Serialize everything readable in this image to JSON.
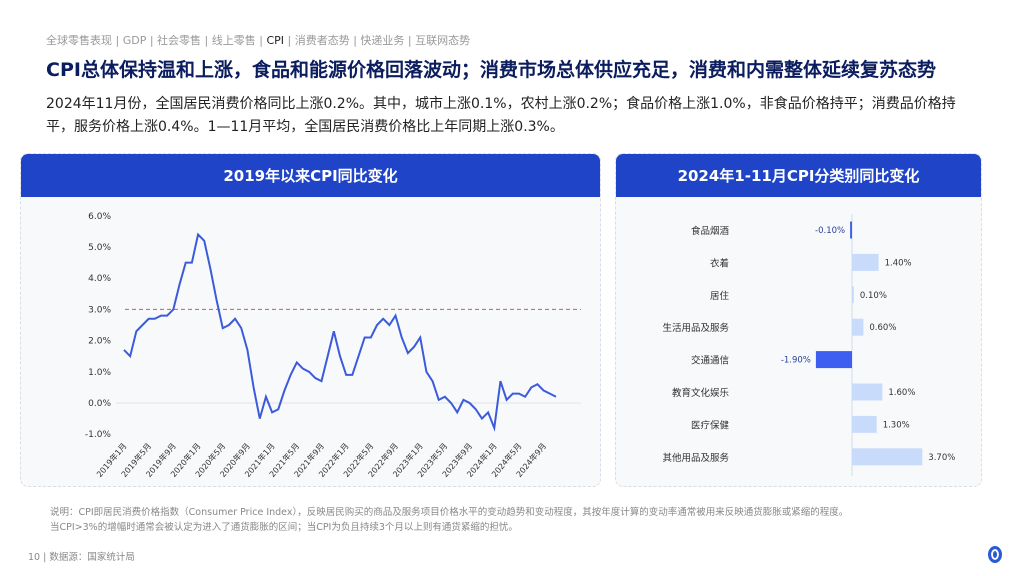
{
  "nav": {
    "items": [
      "全球零售表现",
      "GDP",
      "社会零售",
      "线上零售",
      "CPI",
      "消费者态势",
      "快递业务",
      "互联网态势"
    ],
    "active": "CPI"
  },
  "title": "CPI总体保持温和上涨，食品和能源价格回落波动；消费市场总体供应充足，消费和内需整体延续复苏态势",
  "summary": "2024年11月份，全国居民消费价格同比上涨0.2%。其中，城市上涨0.1%，农村上涨0.2%；食品价格上涨1.0%，非食品价格持平；消费品价格持平，服务价格上涨0.4%。1—11月平均，全国居民消费价格比上年同期上涨0.3%。",
  "note": [
    "说明：CPI即居民消费价格指数（Consumer Price Index），反映居民购买的商品及服务项目价格水平的变动趋势和变动程度，其按年度计算的变动率通常被用来反映通货膨胀或紧缩的程度。",
    "当CPI>3%的增幅时通常会被认定为进入了通货膨胀的区间；当CPI为负且持续3个月以上则有通货紧缩的担忧。"
  ],
  "footer": {
    "page": "10",
    "source": "数据源：国家统计局"
  },
  "colors": {
    "header": "#1f44c7",
    "line": "#3b5bdb",
    "threshold": "#e05252",
    "bar_pos": "#c9dbfb",
    "bar_neg": "#3d5ef0"
  },
  "chart_data": [
    {
      "type": "line",
      "title": "2019年以来CPI同比变化",
      "ylim": [
        -1,
        6
      ],
      "yticks": [
        "6.0%",
        "5.0%",
        "4.0%",
        "3.0%",
        "2.0%",
        "1.0%",
        "0.0%",
        "-1.0%"
      ],
      "ytick_values": [
        6,
        5,
        4,
        3,
        2,
        1,
        0,
        -1
      ],
      "xticks": [
        "2019年1月",
        "2019年5月",
        "2019年9月",
        "2020年1月",
        "2020年5月",
        "2020年9月",
        "2021年1月",
        "2021年5月",
        "2021年9月",
        "2022年1月",
        "2022年5月",
        "2022年9月",
        "2023年1月",
        "2023年5月",
        "2023年9月",
        "2024年1月",
        "2024年5月",
        "2024年9月"
      ],
      "threshold": 3.0,
      "values": [
        1.7,
        1.5,
        2.3,
        2.5,
        2.7,
        2.7,
        2.8,
        2.8,
        3.0,
        3.8,
        4.5,
        4.5,
        5.4,
        5.2,
        4.3,
        3.3,
        2.4,
        2.5,
        2.7,
        2.4,
        1.7,
        0.5,
        -0.5,
        0.2,
        -0.3,
        -0.2,
        0.4,
        0.9,
        1.3,
        1.1,
        1.0,
        0.8,
        0.7,
        1.5,
        2.3,
        1.5,
        0.9,
        0.9,
        1.5,
        2.1,
        2.1,
        2.5,
        2.7,
        2.5,
        2.8,
        2.1,
        1.6,
        1.8,
        2.1,
        1.0,
        0.7,
        0.1,
        0.2,
        0.0,
        -0.3,
        0.1,
        0.0,
        -0.2,
        -0.5,
        -0.3,
        -0.8,
        0.7,
        0.1,
        0.3,
        0.3,
        0.2,
        0.5,
        0.6,
        0.4,
        0.3,
        0.2
      ]
    },
    {
      "type": "bar",
      "orientation": "horizontal",
      "title": "2024年1-11月CPI分类别同比变化",
      "categories": [
        "食品烟酒",
        "衣着",
        "居住",
        "生活用品及服务",
        "交通通信",
        "教育文化娱乐",
        "医疗保健",
        "其他用品及服务"
      ],
      "values": [
        -0.1,
        1.4,
        0.1,
        0.6,
        -1.9,
        1.6,
        1.3,
        3.7
      ],
      "labels": [
        "-0.10%",
        "1.40%",
        "0.10%",
        "0.60%",
        "-1.90%",
        "1.60%",
        "1.30%",
        "3.70%"
      ]
    }
  ]
}
